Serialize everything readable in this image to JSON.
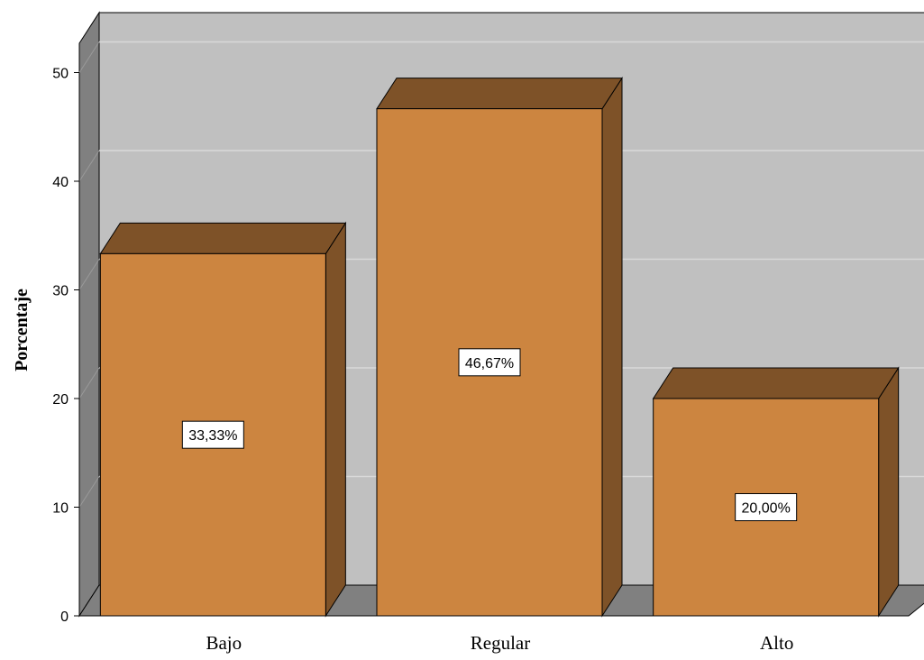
{
  "chart_data": {
    "type": "bar",
    "style": "3d",
    "categories": [
      "Bajo",
      "Regular",
      "Alto"
    ],
    "values": [
      33.33,
      46.67,
      20.0
    ],
    "data_labels": [
      "33,33%",
      "46,67%",
      "20,00%"
    ],
    "title": "",
    "xlabel": "",
    "ylabel": "Porcentaje",
    "ylim": [
      0,
      50
    ],
    "yticks": [
      0,
      10,
      20,
      30,
      40,
      50
    ],
    "grid": true,
    "legend": "none",
    "colors": {
      "bar_front": "#CC8540",
      "bar_top": "#7E5228",
      "bar_side": "#7E5228",
      "back_wall": "#C0C0C0",
      "side_wall": "#808080",
      "floor": "#808080",
      "gridline": "#D9D9D9"
    }
  }
}
